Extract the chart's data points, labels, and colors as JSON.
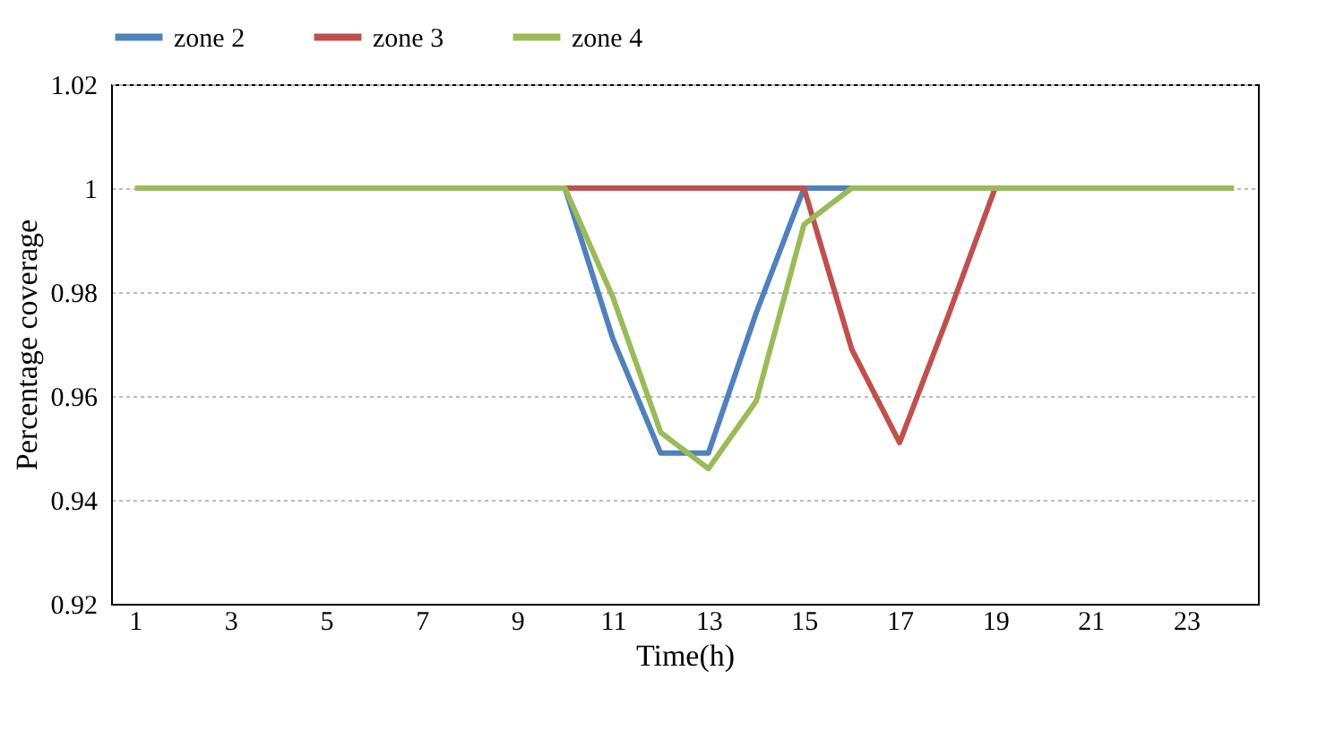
{
  "chart_data": {
    "type": "line",
    "xlabel": "Time(h)",
    "ylabel": "Percentage coverage",
    "x": [
      1,
      2,
      3,
      4,
      5,
      6,
      7,
      8,
      9,
      10,
      11,
      12,
      13,
      14,
      15,
      16,
      17,
      18,
      19,
      20,
      21,
      22,
      23,
      24
    ],
    "xlim": [
      0.5,
      24.5
    ],
    "xticks": [
      1,
      3,
      5,
      7,
      9,
      11,
      13,
      15,
      17,
      19,
      21,
      23
    ],
    "series": [
      {
        "name": "zone 2",
        "color": "#4f81bd",
        "values": [
          null,
          null,
          null,
          null,
          null,
          null,
          null,
          null,
          null,
          1,
          0.971,
          0.949,
          0.949,
          0.976,
          1,
          1,
          null,
          null,
          null,
          null,
          null,
          null,
          null,
          null
        ]
      },
      {
        "name": "zone 3",
        "color": "#c0504d",
        "values": [
          null,
          null,
          null,
          null,
          null,
          null,
          null,
          null,
          null,
          1,
          1,
          1,
          1,
          1,
          1,
          0.969,
          0.951,
          0.975,
          1,
          null,
          null,
          null,
          null,
          null
        ]
      },
      {
        "name": "zone 4",
        "color": "#9bbb59",
        "values": [
          1,
          1,
          1,
          1,
          1,
          1,
          1,
          1,
          1,
          1,
          0.979,
          0.953,
          0.946,
          0.959,
          0.993,
          1,
          1,
          1,
          1,
          1,
          1,
          1,
          1,
          1
        ]
      }
    ],
    "ylim": [
      0.92,
      1.02
    ],
    "yticks": [
      0.92,
      0.94,
      0.96,
      0.98,
      1,
      1.02
    ],
    "grid": "y",
    "legend": "top",
    "marker": "none",
    "line_style": "solid"
  }
}
